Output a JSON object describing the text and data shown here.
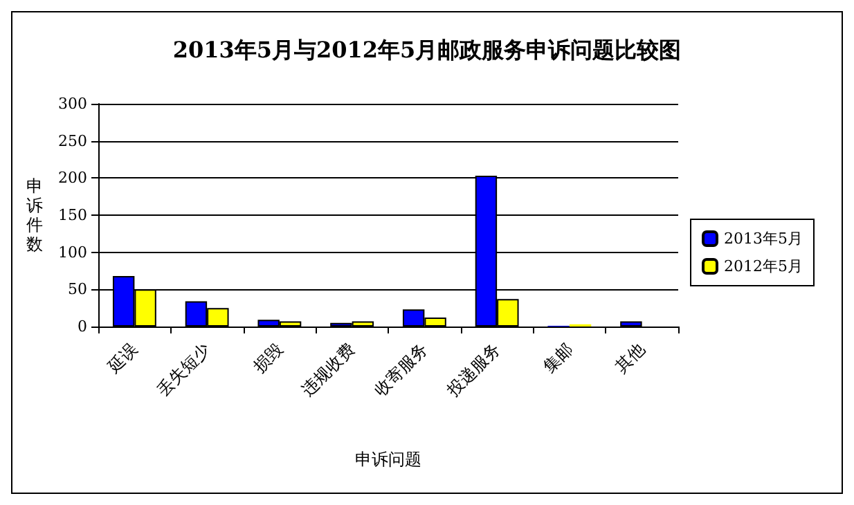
{
  "chart_data": {
    "type": "bar",
    "title": "2013年5月与2012年5月邮政服务申诉问题比较图",
    "xlabel": "申诉问题",
    "ylabel": "申诉件数",
    "categories": [
      "延误",
      "丢失短少",
      "损毁",
      "违规收费",
      "收寄服务",
      "投递服务",
      "集邮",
      "其他"
    ],
    "series": [
      {
        "name": "2013年5月",
        "color": "#0000ff",
        "values": [
          68,
          34,
          9,
          5,
          23,
          203,
          1,
          7
        ]
      },
      {
        "name": "2012年5月",
        "color": "#ffff00",
        "values": [
          50,
          25,
          7,
          7,
          12,
          37,
          3,
          0
        ]
      }
    ],
    "ylim": [
      0,
      300
    ],
    "yticks": [
      0,
      50,
      100,
      150,
      200,
      250,
      300
    ],
    "grid": "y",
    "legend": "right"
  }
}
